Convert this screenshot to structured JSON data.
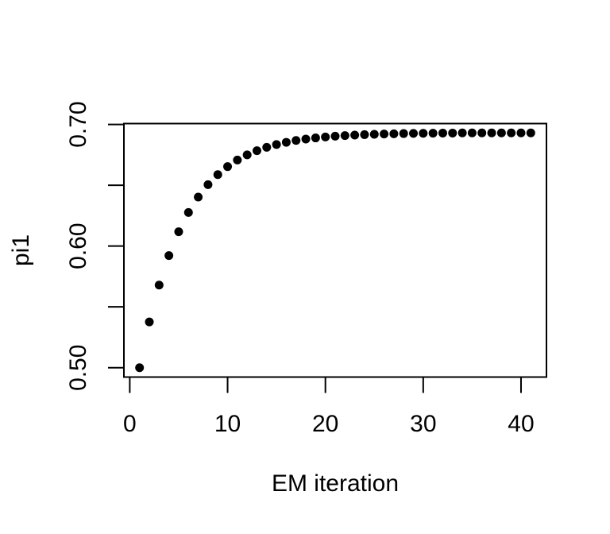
{
  "figure": {
    "background_color": "#ffffff",
    "foreground_color": "#000000"
  },
  "chart_data": {
    "type": "scatter",
    "title": "",
    "xlabel": "EM iteration",
    "ylabel": "pi1",
    "grid": false,
    "legend": "none",
    "marker": {
      "shape": "filled-circle",
      "color": "#000000",
      "radius_px": 5.5
    },
    "xlim": [
      -0.6,
      42.6
    ],
    "ylim": [
      0.4923,
      0.7007
    ],
    "xticks": [
      {
        "value": 0,
        "label": "0"
      },
      {
        "value": 10,
        "label": "10"
      },
      {
        "value": 20,
        "label": "20"
      },
      {
        "value": 30,
        "label": "30"
      },
      {
        "value": 40,
        "label": "40"
      }
    ],
    "yticks": [
      {
        "value": 0.5,
        "label": "0.50"
      },
      {
        "value": 0.55,
        "label": ""
      },
      {
        "value": 0.6,
        "label": "0.60"
      },
      {
        "value": 0.65,
        "label": ""
      },
      {
        "value": 0.7,
        "label": "0.70"
      }
    ],
    "x": [
      1,
      2,
      3,
      4,
      5,
      6,
      7,
      8,
      9,
      10,
      11,
      12,
      13,
      14,
      15,
      16,
      17,
      18,
      19,
      20,
      21,
      22,
      23,
      24,
      25,
      26,
      27,
      28,
      29,
      30,
      31,
      32,
      33,
      34,
      35,
      36,
      37,
      38,
      39,
      40,
      41
    ],
    "y": [
      0.5,
      0.5376,
      0.5679,
      0.5922,
      0.6118,
      0.6276,
      0.6403,
      0.6505,
      0.6587,
      0.6653,
      0.6707,
      0.675,
      0.6784,
      0.6812,
      0.6835,
      0.6853,
      0.6868,
      0.688,
      0.6889,
      0.6897,
      0.6903,
      0.6908,
      0.6912,
      0.6916,
      0.6919,
      0.6921,
      0.6923,
      0.6925,
      0.6926,
      0.6927,
      0.6928,
      0.6929,
      0.6929,
      0.693,
      0.693,
      0.693,
      0.693,
      0.693,
      0.693,
      0.693,
      0.693
    ]
  }
}
